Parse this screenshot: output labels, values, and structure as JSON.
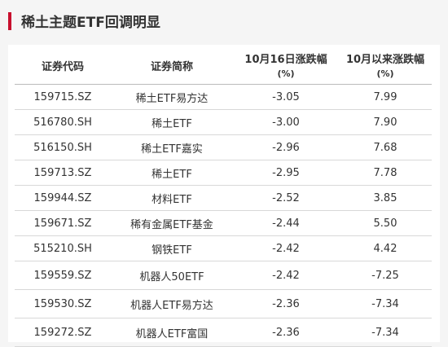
{
  "title": "稀土主题ETF回调明显",
  "accent_color": "#c8102e",
  "table": {
    "headers": [
      {
        "main": "证券代码",
        "sub": ""
      },
      {
        "main": "证券简称",
        "sub": ""
      },
      {
        "main": "10月16日涨跌幅",
        "sub": "(%)"
      },
      {
        "main": "10月以来涨跌幅",
        "sub": "(%)"
      }
    ],
    "rows": [
      [
        "159715.SZ",
        "稀土ETF易方达",
        "-3.05",
        "7.99"
      ],
      [
        "516780.SH",
        "稀土ETF",
        "-3.00",
        "7.90"
      ],
      [
        "516150.SH",
        "稀土ETF嘉实",
        "-2.96",
        "7.68"
      ],
      [
        "159713.SZ",
        "稀土ETF",
        "-2.95",
        "7.78"
      ],
      [
        "159944.SZ",
        "材料ETF",
        "-2.52",
        "3.85"
      ],
      [
        "159671.SZ",
        "稀有金属ETF基金",
        "-2.44",
        "5.50"
      ],
      [
        "515210.SH",
        "钢铁ETF",
        "-2.42",
        "4.42"
      ],
      [
        "159559.SZ",
        "机器人50ETF",
        "-2.42",
        "-7.25"
      ],
      [
        "159530.SZ",
        "机器人ETF易方达",
        "-2.36",
        "-7.34"
      ],
      [
        "159272.SZ",
        "机器人ETF富国",
        "-2.36",
        "-7.34"
      ]
    ]
  }
}
